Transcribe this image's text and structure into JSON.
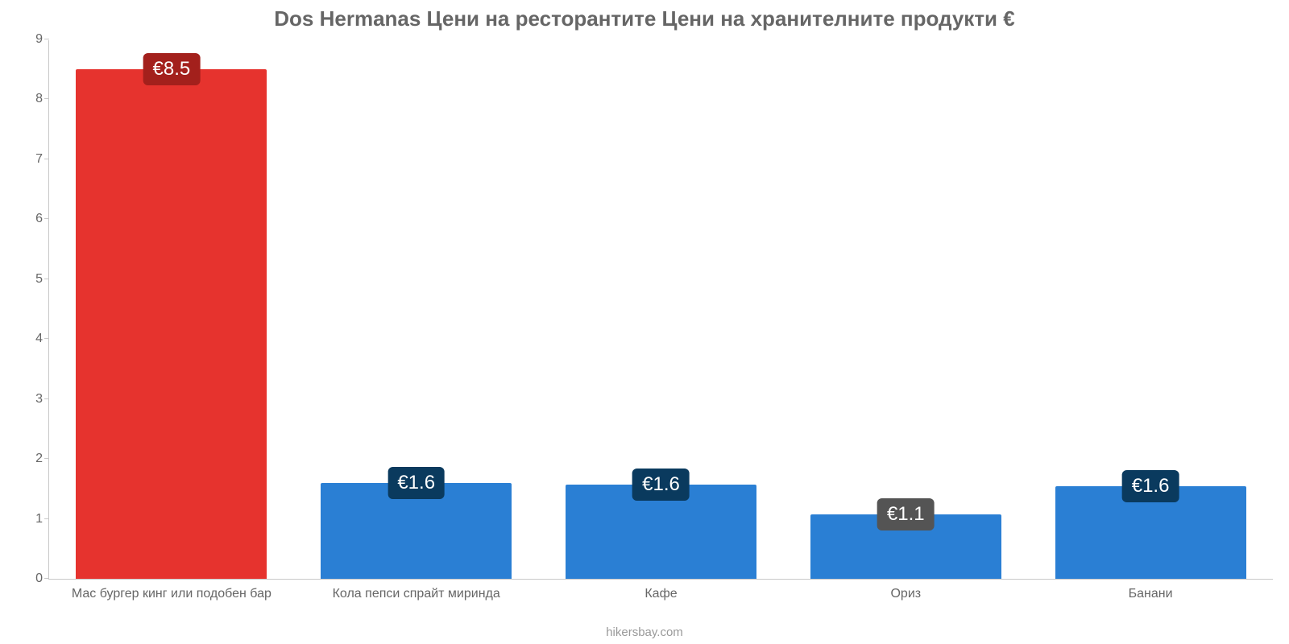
{
  "chart": {
    "type": "bar",
    "title": "Dos Hermanas Цени на ресторантите Цени на хранителните продукти €",
    "title_color": "#666666",
    "title_fontsize": 26,
    "attribution": "hikersbay.com",
    "attribution_color": "#999999",
    "attribution_fontsize": 15,
    "background_color": "#ffffff",
    "axis_color": "#c8c8c8",
    "tick_label_color": "#666666",
    "tick_label_fontsize": 16,
    "xlabel_fontsize": 16,
    "ylim": [
      0,
      9
    ],
    "yticks": [
      0,
      1,
      2,
      3,
      4,
      5,
      6,
      7,
      8,
      9
    ],
    "bar_width_pct": 78,
    "bar_label_fontsize": 24,
    "bar_label_color": "#ffffff",
    "bars": [
      {
        "category": "Мас бургер кинг или подобен бар",
        "value": 8.5,
        "display": "€8.5",
        "fill": "#e6332e",
        "label_bg": "#a3201c"
      },
      {
        "category": "Кола пепси спрайт миринда",
        "value": 1.6,
        "display": "€1.6",
        "fill": "#2a7fd4",
        "label_bg": "#0a3a5e"
      },
      {
        "category": "Кафе",
        "value": 1.57,
        "display": "€1.6",
        "fill": "#2a7fd4",
        "label_bg": "#0a3a5e"
      },
      {
        "category": "Ориз",
        "value": 1.08,
        "display": "€1.1",
        "fill": "#2a7fd4",
        "label_bg": "#545454"
      },
      {
        "category": "Банани",
        "value": 1.55,
        "display": "€1.6",
        "fill": "#2a7fd4",
        "label_bg": "#0a3a5e"
      }
    ]
  }
}
